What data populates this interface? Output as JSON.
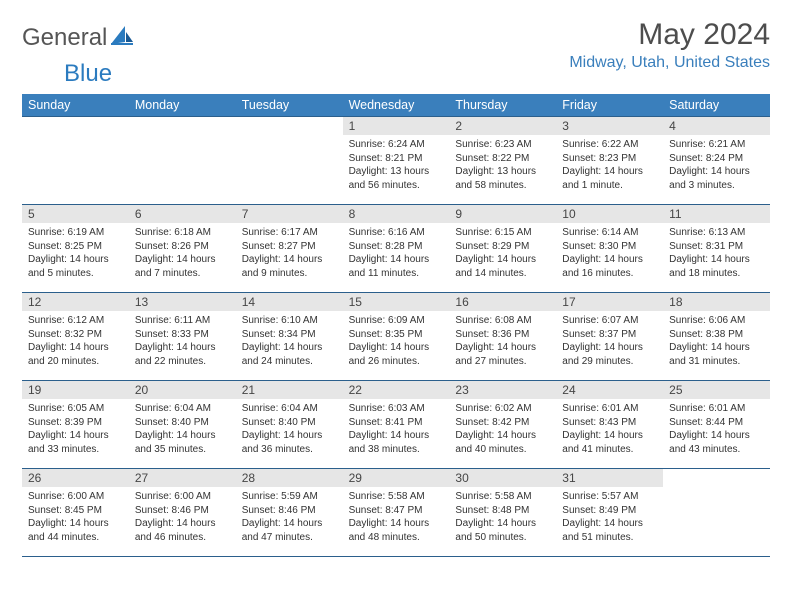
{
  "logo": {
    "word1": "General",
    "word2": "Blue"
  },
  "title": "May 2024",
  "location": "Midway, Utah, United States",
  "dayHeaders": [
    "Sunday",
    "Monday",
    "Tuesday",
    "Wednesday",
    "Thursday",
    "Friday",
    "Saturday"
  ],
  "colors": {
    "headerBg": "#3a7fbc",
    "headerText": "#ffffff",
    "dayBg": "#e6e6e6",
    "border": "#2b5f8c",
    "logoBlue": "#2b7bbf",
    "logoGray": "#555555",
    "bodyText": "#333333"
  },
  "cells": [
    {
      "day": "",
      "sunrise": "",
      "sunset": "",
      "daylight": ""
    },
    {
      "day": "",
      "sunrise": "",
      "sunset": "",
      "daylight": ""
    },
    {
      "day": "",
      "sunrise": "",
      "sunset": "",
      "daylight": ""
    },
    {
      "day": "1",
      "sunrise": "Sunrise: 6:24 AM",
      "sunset": "Sunset: 8:21 PM",
      "daylight": "Daylight: 13 hours and 56 minutes."
    },
    {
      "day": "2",
      "sunrise": "Sunrise: 6:23 AM",
      "sunset": "Sunset: 8:22 PM",
      "daylight": "Daylight: 13 hours and 58 minutes."
    },
    {
      "day": "3",
      "sunrise": "Sunrise: 6:22 AM",
      "sunset": "Sunset: 8:23 PM",
      "daylight": "Daylight: 14 hours and 1 minute."
    },
    {
      "day": "4",
      "sunrise": "Sunrise: 6:21 AM",
      "sunset": "Sunset: 8:24 PM",
      "daylight": "Daylight: 14 hours and 3 minutes."
    },
    {
      "day": "5",
      "sunrise": "Sunrise: 6:19 AM",
      "sunset": "Sunset: 8:25 PM",
      "daylight": "Daylight: 14 hours and 5 minutes."
    },
    {
      "day": "6",
      "sunrise": "Sunrise: 6:18 AM",
      "sunset": "Sunset: 8:26 PM",
      "daylight": "Daylight: 14 hours and 7 minutes."
    },
    {
      "day": "7",
      "sunrise": "Sunrise: 6:17 AM",
      "sunset": "Sunset: 8:27 PM",
      "daylight": "Daylight: 14 hours and 9 minutes."
    },
    {
      "day": "8",
      "sunrise": "Sunrise: 6:16 AM",
      "sunset": "Sunset: 8:28 PM",
      "daylight": "Daylight: 14 hours and 11 minutes."
    },
    {
      "day": "9",
      "sunrise": "Sunrise: 6:15 AM",
      "sunset": "Sunset: 8:29 PM",
      "daylight": "Daylight: 14 hours and 14 minutes."
    },
    {
      "day": "10",
      "sunrise": "Sunrise: 6:14 AM",
      "sunset": "Sunset: 8:30 PM",
      "daylight": "Daylight: 14 hours and 16 minutes."
    },
    {
      "day": "11",
      "sunrise": "Sunrise: 6:13 AM",
      "sunset": "Sunset: 8:31 PM",
      "daylight": "Daylight: 14 hours and 18 minutes."
    },
    {
      "day": "12",
      "sunrise": "Sunrise: 6:12 AM",
      "sunset": "Sunset: 8:32 PM",
      "daylight": "Daylight: 14 hours and 20 minutes."
    },
    {
      "day": "13",
      "sunrise": "Sunrise: 6:11 AM",
      "sunset": "Sunset: 8:33 PM",
      "daylight": "Daylight: 14 hours and 22 minutes."
    },
    {
      "day": "14",
      "sunrise": "Sunrise: 6:10 AM",
      "sunset": "Sunset: 8:34 PM",
      "daylight": "Daylight: 14 hours and 24 minutes."
    },
    {
      "day": "15",
      "sunrise": "Sunrise: 6:09 AM",
      "sunset": "Sunset: 8:35 PM",
      "daylight": "Daylight: 14 hours and 26 minutes."
    },
    {
      "day": "16",
      "sunrise": "Sunrise: 6:08 AM",
      "sunset": "Sunset: 8:36 PM",
      "daylight": "Daylight: 14 hours and 27 minutes."
    },
    {
      "day": "17",
      "sunrise": "Sunrise: 6:07 AM",
      "sunset": "Sunset: 8:37 PM",
      "daylight": "Daylight: 14 hours and 29 minutes."
    },
    {
      "day": "18",
      "sunrise": "Sunrise: 6:06 AM",
      "sunset": "Sunset: 8:38 PM",
      "daylight": "Daylight: 14 hours and 31 minutes."
    },
    {
      "day": "19",
      "sunrise": "Sunrise: 6:05 AM",
      "sunset": "Sunset: 8:39 PM",
      "daylight": "Daylight: 14 hours and 33 minutes."
    },
    {
      "day": "20",
      "sunrise": "Sunrise: 6:04 AM",
      "sunset": "Sunset: 8:40 PM",
      "daylight": "Daylight: 14 hours and 35 minutes."
    },
    {
      "day": "21",
      "sunrise": "Sunrise: 6:04 AM",
      "sunset": "Sunset: 8:40 PM",
      "daylight": "Daylight: 14 hours and 36 minutes."
    },
    {
      "day": "22",
      "sunrise": "Sunrise: 6:03 AM",
      "sunset": "Sunset: 8:41 PM",
      "daylight": "Daylight: 14 hours and 38 minutes."
    },
    {
      "day": "23",
      "sunrise": "Sunrise: 6:02 AM",
      "sunset": "Sunset: 8:42 PM",
      "daylight": "Daylight: 14 hours and 40 minutes."
    },
    {
      "day": "24",
      "sunrise": "Sunrise: 6:01 AM",
      "sunset": "Sunset: 8:43 PM",
      "daylight": "Daylight: 14 hours and 41 minutes."
    },
    {
      "day": "25",
      "sunrise": "Sunrise: 6:01 AM",
      "sunset": "Sunset: 8:44 PM",
      "daylight": "Daylight: 14 hours and 43 minutes."
    },
    {
      "day": "26",
      "sunrise": "Sunrise: 6:00 AM",
      "sunset": "Sunset: 8:45 PM",
      "daylight": "Daylight: 14 hours and 44 minutes."
    },
    {
      "day": "27",
      "sunrise": "Sunrise: 6:00 AM",
      "sunset": "Sunset: 8:46 PM",
      "daylight": "Daylight: 14 hours and 46 minutes."
    },
    {
      "day": "28",
      "sunrise": "Sunrise: 5:59 AM",
      "sunset": "Sunset: 8:46 PM",
      "daylight": "Daylight: 14 hours and 47 minutes."
    },
    {
      "day": "29",
      "sunrise": "Sunrise: 5:58 AM",
      "sunset": "Sunset: 8:47 PM",
      "daylight": "Daylight: 14 hours and 48 minutes."
    },
    {
      "day": "30",
      "sunrise": "Sunrise: 5:58 AM",
      "sunset": "Sunset: 8:48 PM",
      "daylight": "Daylight: 14 hours and 50 minutes."
    },
    {
      "day": "31",
      "sunrise": "Sunrise: 5:57 AM",
      "sunset": "Sunset: 8:49 PM",
      "daylight": "Daylight: 14 hours and 51 minutes."
    },
    {
      "day": "",
      "sunrise": "",
      "sunset": "",
      "daylight": ""
    }
  ]
}
